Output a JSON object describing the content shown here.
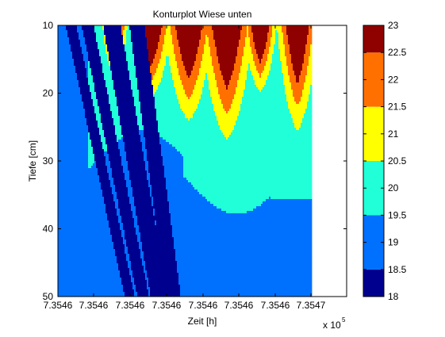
{
  "chart_data": {
    "type": "heatmap",
    "subtype": "filled-contour",
    "title": "Konturplot Wiese unten",
    "xlabel": "Zeit [h]",
    "ylabel": "Tiefe [cm]",
    "x_tick_labels": [
      "7.3546",
      "7.3546",
      "7.3546",
      "7.3546",
      "7.3546",
      "7.3546",
      "7.3546",
      "7.3547"
    ],
    "x_exponent_label": "x 10",
    "x_exponent_power": "5",
    "y_tick_labels": [
      "10",
      "20",
      "30",
      "40",
      "50"
    ],
    "ylim": [
      10,
      50
    ],
    "y_reversed": true,
    "colorbar": {
      "tick_labels": [
        "18",
        "18.5",
        "19",
        "19.5",
        "20",
        "20.5",
        "21",
        "21.5",
        "22",
        "22.5",
        "23"
      ],
      "range": [
        18,
        23
      ],
      "colormap": "jet"
    },
    "levels": [
      {
        "name": "deep-blue",
        "min": 18,
        "max": 18.5,
        "color": "#00008f"
      },
      {
        "name": "blue",
        "min": 18.5,
        "max": 19.5,
        "color": "#0070ff"
      },
      {
        "name": "cyan",
        "min": 19.5,
        "max": 20.5,
        "color": "#20ffd8"
      },
      {
        "name": "yellow",
        "min": 20.5,
        "max": 21.5,
        "color": "#ffff00"
      },
      {
        "name": "orange",
        "min": 21.5,
        "max": 22.5,
        "color": "#ff7000"
      },
      {
        "name": "red",
        "min": 22.5,
        "max": 23,
        "color": "#8f0000"
      }
    ],
    "grid": false,
    "legend": "colorbar-right"
  }
}
